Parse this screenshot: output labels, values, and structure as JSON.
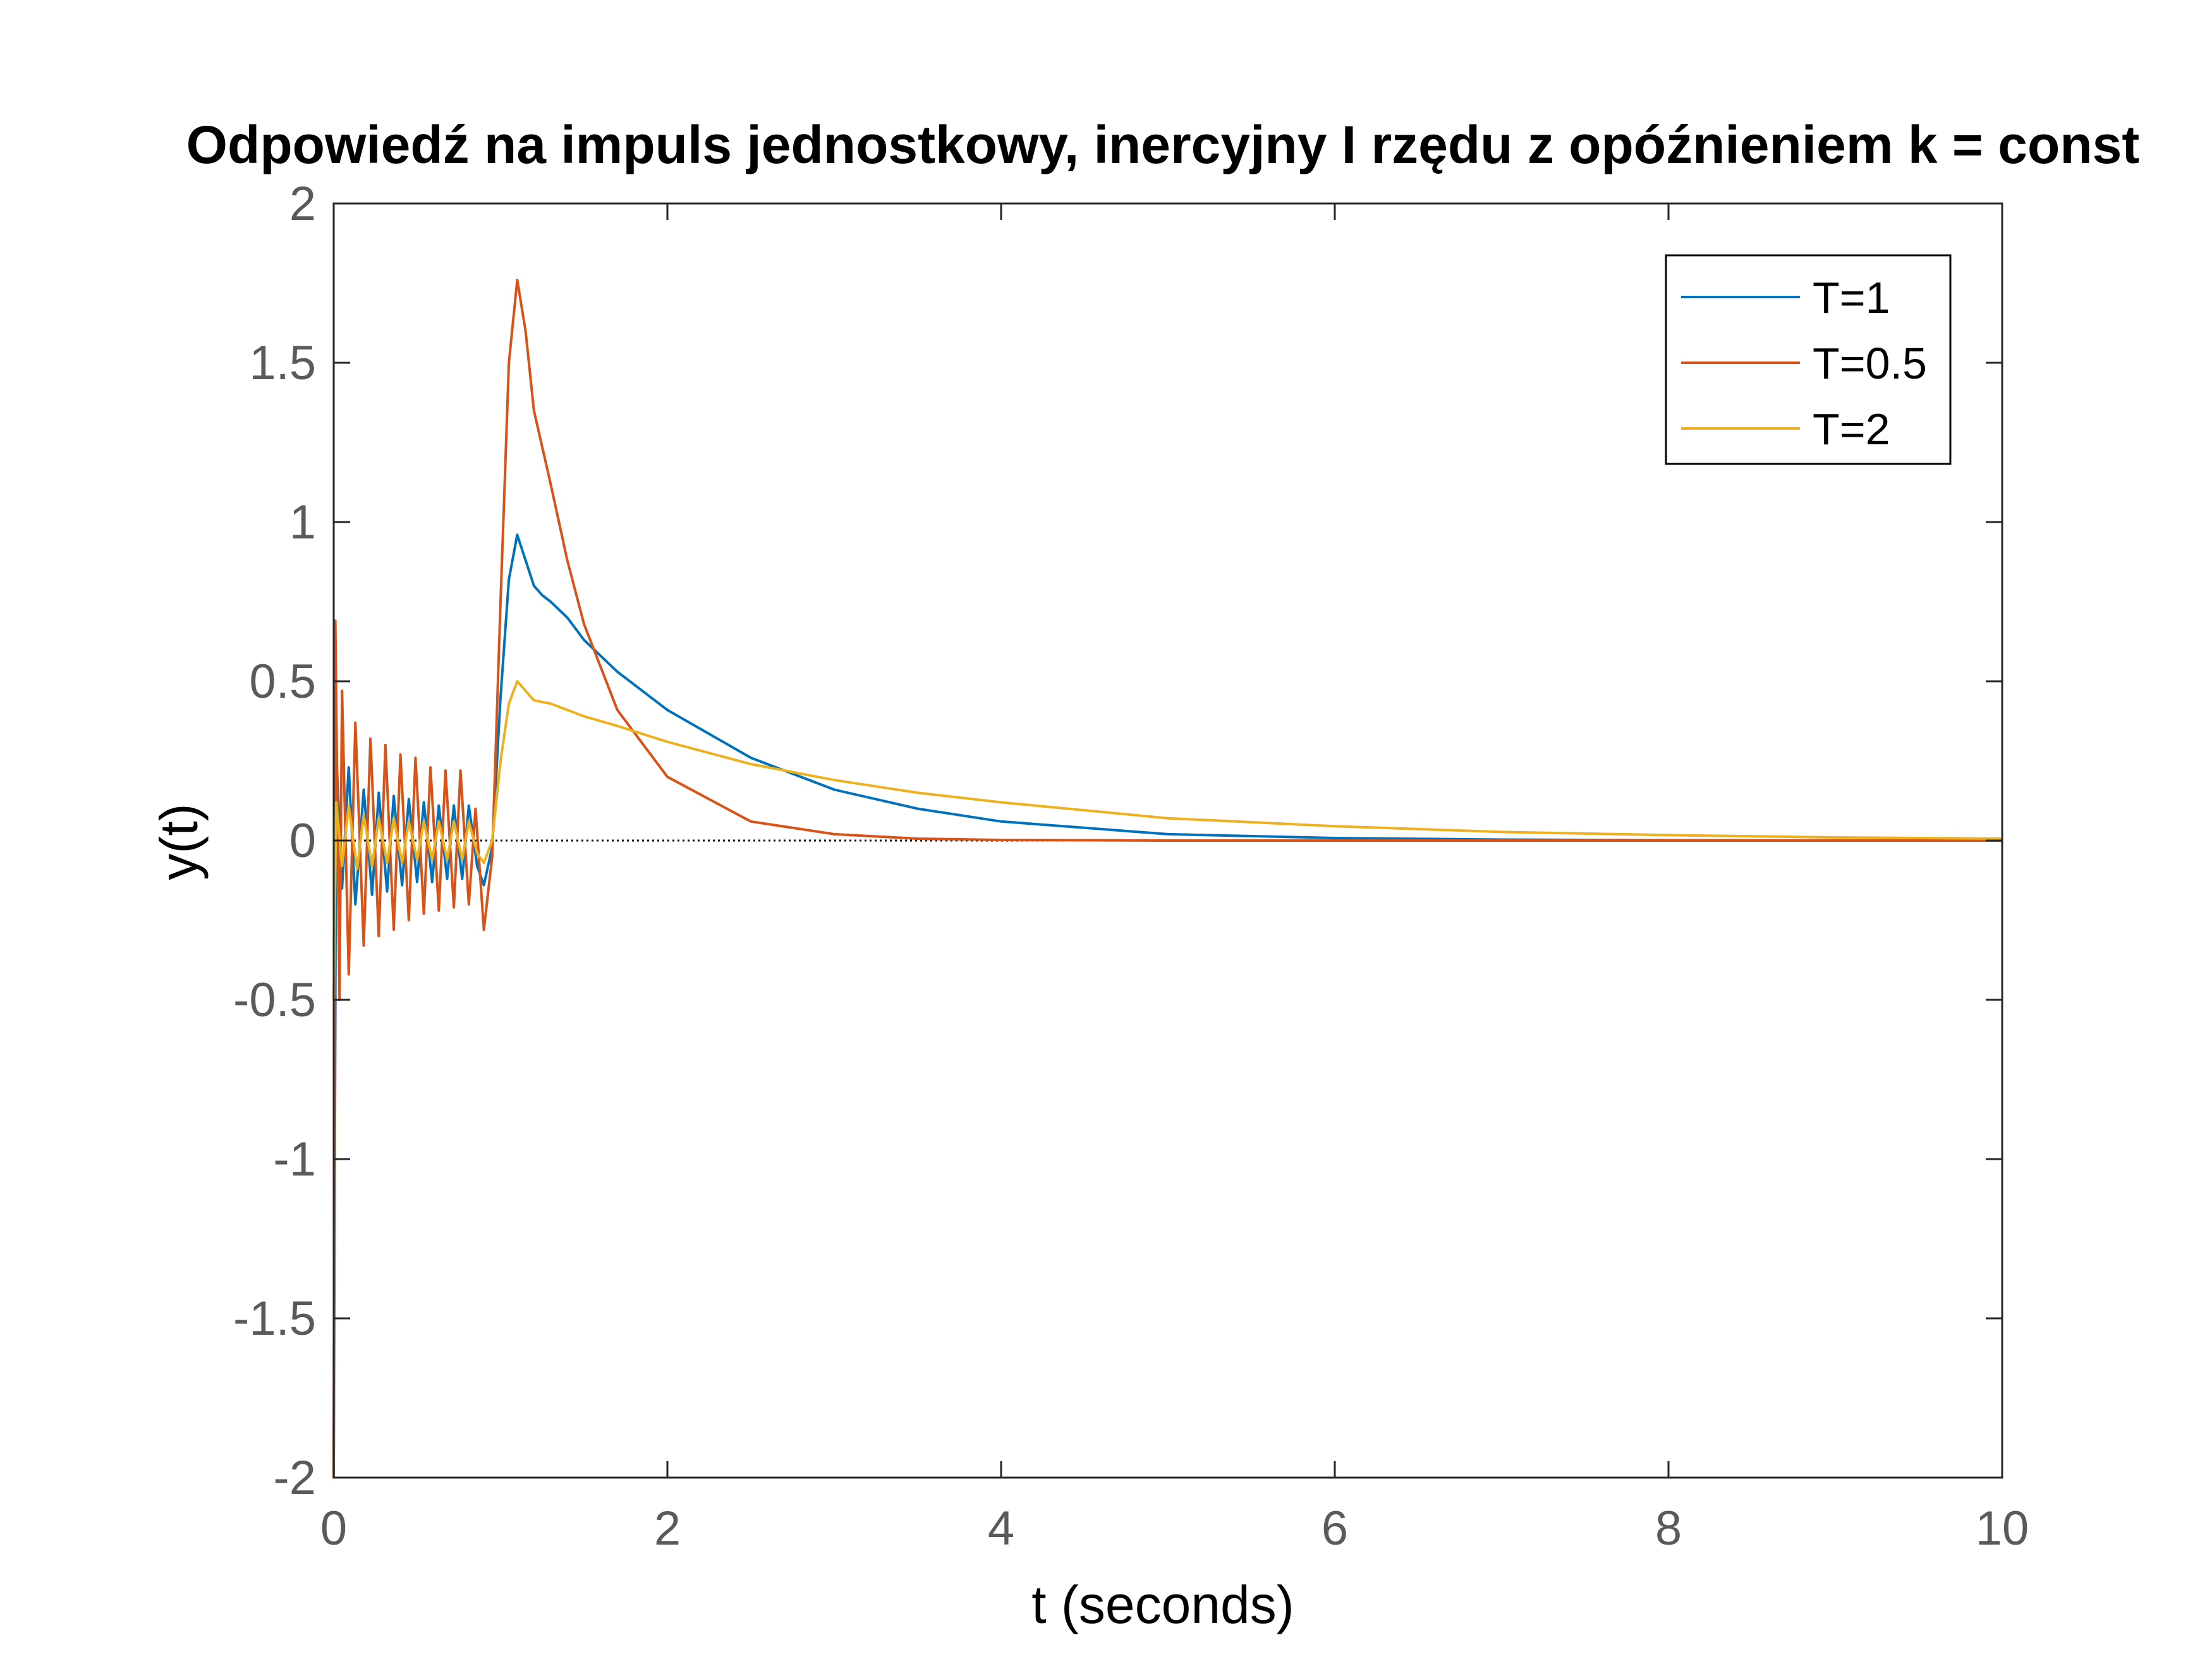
{
  "chart_data": {
    "type": "line",
    "title": "Odpowiedź na impuls jednostkowy, inercyjny I rzędu z opóźnieniem k = const",
    "xlabel": "t (seconds)",
    "ylabel": "y(t)",
    "xlim": [
      0,
      10
    ],
    "ylim": [
      -2,
      2
    ],
    "xticks": [
      0,
      2,
      4,
      6,
      8,
      10
    ],
    "xtick_labels": [
      "0",
      "2",
      "4",
      "6",
      "8",
      "10"
    ],
    "yticks": [
      -2,
      -1.5,
      -1,
      -0.5,
      0,
      0.5,
      1,
      1.5,
      2
    ],
    "ytick_labels": [
      "-2",
      "-1.5",
      "-1",
      "-0.5",
      "0",
      "0.5",
      "1",
      "1.5",
      "2"
    ],
    "grid": false,
    "legend_position": "top-right",
    "zero_line": {
      "y": 0,
      "style": "dotted",
      "color": "#000000"
    },
    "series": [
      {
        "name": "T=1",
        "color": "#0072BD",
        "points": [
          [
            0,
            -2
          ],
          [
            0.015,
            0.28
          ],
          [
            0.05,
            -0.15
          ],
          [
            0.09,
            0.23
          ],
          [
            0.13,
            -0.2
          ],
          [
            0.18,
            0.16
          ],
          [
            0.23,
            -0.17
          ],
          [
            0.27,
            0.15
          ],
          [
            0.32,
            -0.16
          ],
          [
            0.36,
            0.14
          ],
          [
            0.41,
            -0.14
          ],
          [
            0.45,
            0.13
          ],
          [
            0.5,
            -0.13
          ],
          [
            0.54,
            0.12
          ],
          [
            0.59,
            -0.13
          ],
          [
            0.63,
            0.11
          ],
          [
            0.68,
            -0.12
          ],
          [
            0.72,
            0.11
          ],
          [
            0.77,
            -0.12
          ],
          [
            0.81,
            0.11
          ],
          [
            0.86,
            -0.08
          ],
          [
            0.9,
            -0.14
          ],
          [
            0.95,
            -0.02
          ],
          [
            1.0,
            0.45
          ],
          [
            1.05,
            0.82
          ],
          [
            1.1,
            0.96
          ],
          [
            1.15,
            0.88
          ],
          [
            1.2,
            0.8
          ],
          [
            1.25,
            0.77
          ],
          [
            1.3,
            0.75
          ],
          [
            1.4,
            0.7
          ],
          [
            1.5,
            0.63
          ],
          [
            1.7,
            0.53
          ],
          [
            2.0,
            0.41
          ],
          [
            2.5,
            0.26
          ],
          [
            3.0,
            0.16
          ],
          [
            3.5,
            0.1
          ],
          [
            4.0,
            0.06
          ],
          [
            5.0,
            0.02
          ],
          [
            6.0,
            0.008
          ],
          [
            7.0,
            0.003
          ],
          [
            8.0,
            0.001
          ],
          [
            10.0,
            0
          ]
        ]
      },
      {
        "name": "T=0.5",
        "color": "#D95319",
        "points": [
          [
            0,
            -2
          ],
          [
            0.01,
            0.69
          ],
          [
            0.035,
            -0.5
          ],
          [
            0.05,
            0.47
          ],
          [
            0.09,
            -0.42
          ],
          [
            0.13,
            0.37
          ],
          [
            0.18,
            -0.33
          ],
          [
            0.22,
            0.32
          ],
          [
            0.27,
            -0.3
          ],
          [
            0.31,
            0.3
          ],
          [
            0.36,
            -0.28
          ],
          [
            0.4,
            0.27
          ],
          [
            0.45,
            -0.25
          ],
          [
            0.49,
            0.26
          ],
          [
            0.54,
            -0.23
          ],
          [
            0.58,
            0.23
          ],
          [
            0.63,
            -0.22
          ],
          [
            0.67,
            0.22
          ],
          [
            0.72,
            -0.21
          ],
          [
            0.76,
            0.22
          ],
          [
            0.81,
            -0.2
          ],
          [
            0.85,
            0.1
          ],
          [
            0.9,
            -0.28
          ],
          [
            0.95,
            -0.05
          ],
          [
            1.0,
            0.75
          ],
          [
            1.05,
            1.5
          ],
          [
            1.1,
            1.76
          ],
          [
            1.15,
            1.6
          ],
          [
            1.2,
            1.35
          ],
          [
            1.3,
            1.12
          ],
          [
            1.4,
            0.88
          ],
          [
            1.5,
            0.68
          ],
          [
            1.7,
            0.41
          ],
          [
            2.0,
            0.2
          ],
          [
            2.5,
            0.06
          ],
          [
            3.0,
            0.02
          ],
          [
            3.5,
            0.006
          ],
          [
            4.0,
            0.002
          ],
          [
            5.0,
            0
          ],
          [
            10.0,
            0
          ]
        ]
      },
      {
        "name": "T=2",
        "color": "#EDB120",
        "points": [
          [
            0,
            -0.5
          ],
          [
            0.015,
            0.12
          ],
          [
            0.05,
            -0.08
          ],
          [
            0.09,
            0.11
          ],
          [
            0.14,
            -0.09
          ],
          [
            0.18,
            0.08
          ],
          [
            0.23,
            -0.08
          ],
          [
            0.27,
            0.07
          ],
          [
            0.32,
            -0.07
          ],
          [
            0.36,
            0.07
          ],
          [
            0.41,
            -0.07
          ],
          [
            0.45,
            0.06
          ],
          [
            0.5,
            -0.06
          ],
          [
            0.54,
            0.06
          ],
          [
            0.59,
            -0.06
          ],
          [
            0.63,
            0.06
          ],
          [
            0.68,
            -0.06
          ],
          [
            0.72,
            0.06
          ],
          [
            0.77,
            -0.06
          ],
          [
            0.81,
            0.06
          ],
          [
            0.86,
            -0.04
          ],
          [
            0.9,
            -0.07
          ],
          [
            0.95,
            0
          ],
          [
            1.0,
            0.25
          ],
          [
            1.05,
            0.43
          ],
          [
            1.1,
            0.5
          ],
          [
            1.15,
            0.47
          ],
          [
            1.2,
            0.44
          ],
          [
            1.3,
            0.43
          ],
          [
            1.4,
            0.41
          ],
          [
            1.5,
            0.39
          ],
          [
            1.7,
            0.36
          ],
          [
            2.0,
            0.31
          ],
          [
            2.5,
            0.24
          ],
          [
            3.0,
            0.19
          ],
          [
            3.5,
            0.15
          ],
          [
            4.0,
            0.12
          ],
          [
            5.0,
            0.07
          ],
          [
            6.0,
            0.045
          ],
          [
            7.0,
            0.027
          ],
          [
            8.0,
            0.017
          ],
          [
            9.0,
            0.01
          ],
          [
            10.0,
            0.006
          ]
        ]
      }
    ]
  }
}
